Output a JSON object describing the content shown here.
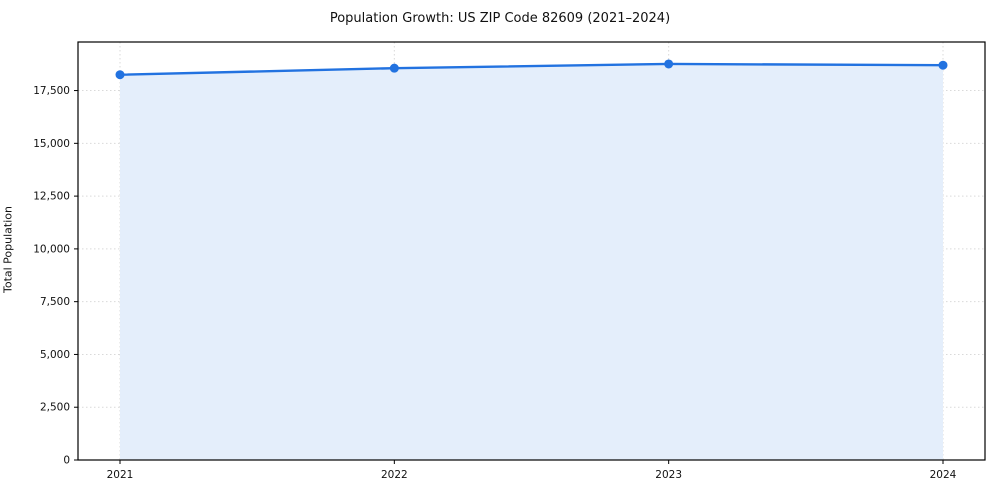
{
  "chart_data": {
    "type": "line",
    "title": "Population Growth: US ZIP Code 82609 (2021–2024)",
    "xlabel": "",
    "ylabel": "Total Population",
    "categories": [
      "2021",
      "2022",
      "2023",
      "2024"
    ],
    "series": [
      {
        "name": "Total Population",
        "values": [
          18250,
          18560,
          18760,
          18700
        ]
      }
    ],
    "ylim": [
      0,
      19800
    ],
    "yticks": [
      0,
      2500,
      5000,
      7500,
      10000,
      12500,
      15000,
      17500
    ],
    "grid": true,
    "legend_position": "none",
    "line_color": "#2272e0",
    "marker_color": "#2272e0",
    "area_fill_color": "#e4eefb",
    "grid_color": "#d9d9d9",
    "axis_color": "#000000",
    "background_color": "#ffffff",
    "marker_style": "circle",
    "markers": true
  }
}
